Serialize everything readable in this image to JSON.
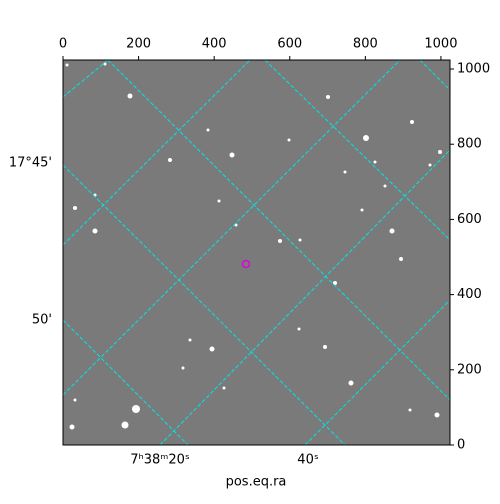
{
  "chart_data": {
    "type": "image",
    "xlim": [
      0,
      1024
    ],
    "ylim": [
      0,
      1024
    ],
    "xticks": [
      0,
      200,
      400,
      600,
      800,
      1000
    ],
    "yticks": [
      0,
      200,
      400,
      600,
      800,
      1000
    ],
    "xlabel": "pos.eq.ra",
    "ra_labels": [
      "7ʰ38ᵐ20ˢ",
      "40ˢ"
    ],
    "dec_labels": [
      "17°45'",
      "50'"
    ]
  }
}
